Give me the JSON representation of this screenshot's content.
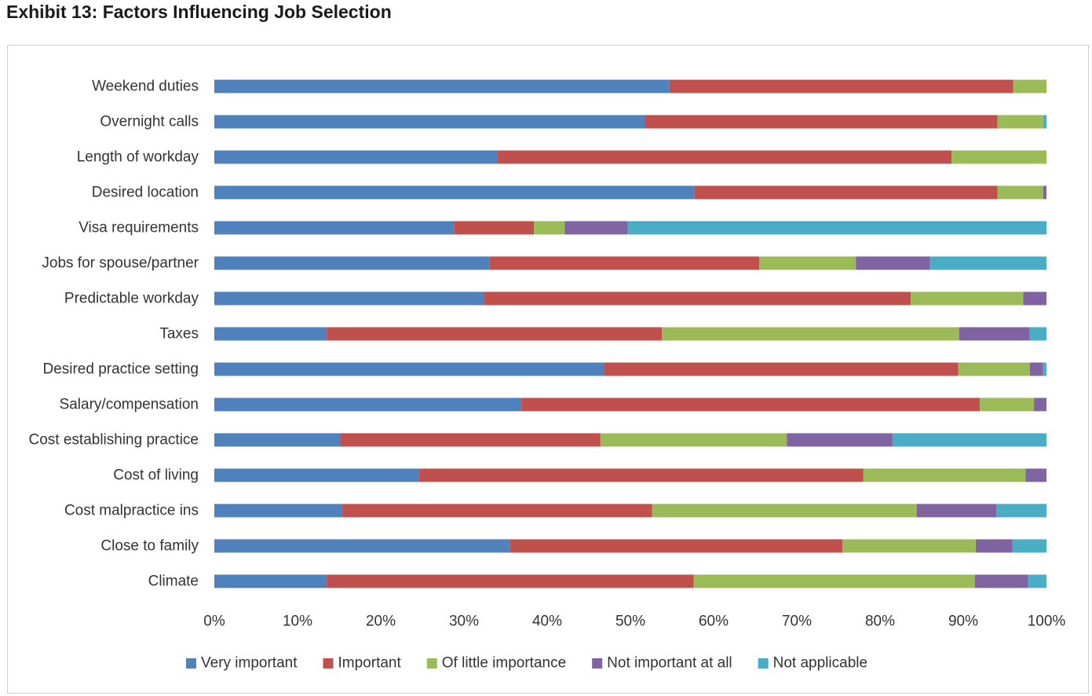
{
  "chart_data": {
    "type": "bar",
    "orientation": "horizontal",
    "stacked": true,
    "title": "Exhibit 13: Factors Influencing Job Selection",
    "categories": [
      "Weekend duties",
      "Overnight calls",
      "Length of workday",
      "Desired location",
      "Visa requirements",
      "Jobs for spouse/partner",
      "Predictable workday",
      "Taxes",
      "Desired practice setting",
      "Salary/compensation",
      "Cost establishing practice",
      "Cost of living",
      "Cost malpractice ins",
      "Close to family",
      "Climate"
    ],
    "series": [
      {
        "name": "Very important",
        "color": "#4f81bd",
        "values": [
          54.7,
          51.7,
          34.0,
          57.7,
          28.8,
          33.1,
          32.4,
          13.5,
          46.8,
          36.9,
          15.1,
          24.6,
          15.3,
          35.5,
          13.5
        ]
      },
      {
        "name": "Important",
        "color": "#c0504d",
        "values": [
          41.3,
          42.4,
          54.6,
          36.4,
          9.6,
          32.4,
          51.3,
          40.3,
          42.6,
          55.1,
          31.3,
          53.4,
          37.3,
          40.0,
          44.1
        ]
      },
      {
        "name": "Of little importance",
        "color": "#9bbb59",
        "values": [
          4.0,
          5.5,
          11.4,
          5.5,
          3.7,
          11.6,
          13.5,
          35.7,
          8.6,
          6.5,
          22.4,
          19.5,
          31.8,
          16.0,
          33.8
        ]
      },
      {
        "name": "Not important at all",
        "color": "#8064a2",
        "values": [
          0.0,
          0.0,
          0.0,
          0.4,
          7.6,
          8.9,
          2.8,
          8.5,
          1.6,
          1.5,
          12.7,
          2.5,
          9.6,
          4.4,
          6.4
        ]
      },
      {
        "name": "Not applicable",
        "color": "#4bacc6",
        "values": [
          0.0,
          0.4,
          0.0,
          0.0,
          50.3,
          14.0,
          0.0,
          2.0,
          0.4,
          0.0,
          18.5,
          0.0,
          6.0,
          4.1,
          2.2
        ]
      }
    ],
    "x_ticks": [
      "0%",
      "10%",
      "20%",
      "30%",
      "40%",
      "50%",
      "60%",
      "70%",
      "80%",
      "90%",
      "100%"
    ],
    "xlim": [
      0,
      100
    ],
    "grid": false,
    "legend_position": "bottom"
  }
}
